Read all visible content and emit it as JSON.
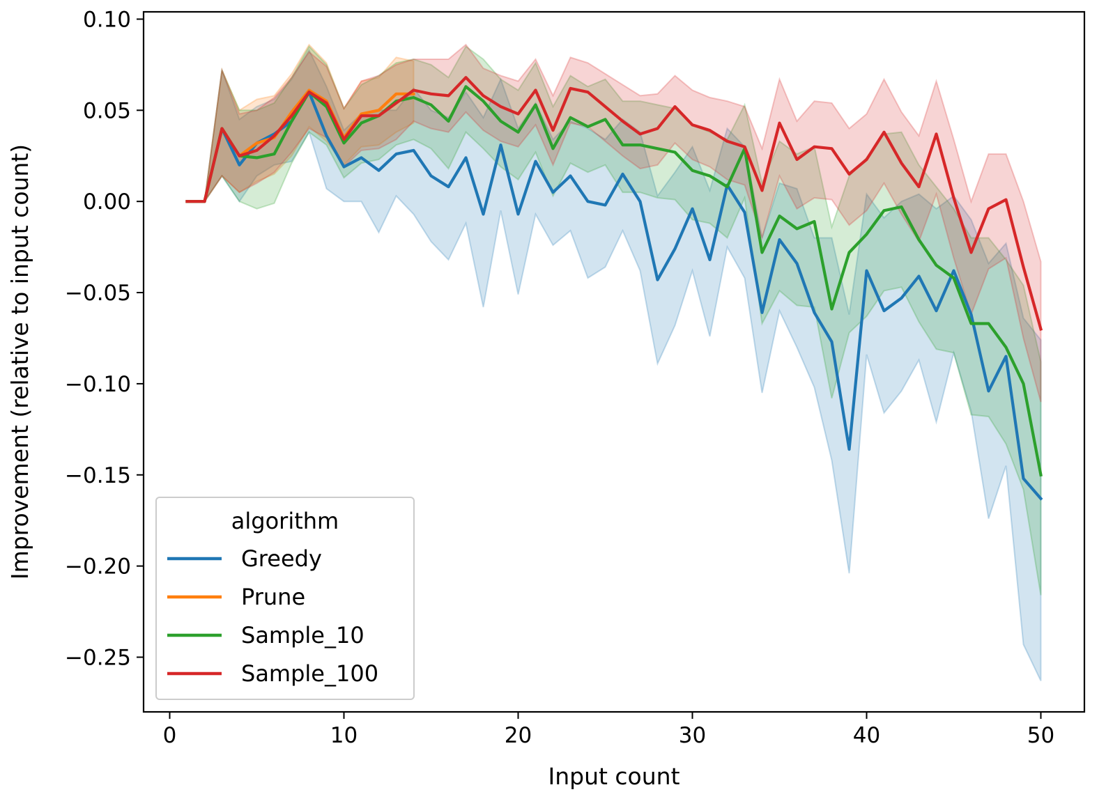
{
  "chart_data": {
    "type": "line",
    "title": "",
    "xlabel": "Input count",
    "ylabel": "Improvement (relative to input count)",
    "xlim": [
      -1.5,
      52.5
    ],
    "ylim": [
      -0.28,
      0.104
    ],
    "xticks": [
      0,
      10,
      20,
      30,
      40,
      50
    ],
    "xtick_labels": [
      "0",
      "10",
      "20",
      "30",
      "40",
      "50"
    ],
    "yticks": [
      0.1,
      0.05,
      0.0,
      -0.05,
      -0.1,
      -0.15,
      -0.2,
      -0.25
    ],
    "ytick_labels": [
      "0.10",
      "0.05",
      "0.00",
      "−0.05",
      "−0.10",
      "−0.15",
      "−0.20",
      "−0.25"
    ],
    "grid": false,
    "legend": {
      "title": "algorithm",
      "placement": "lower-left"
    },
    "series": [
      {
        "name": "Greedy",
        "color": "#1f77b4",
        "x": [
          1,
          2,
          3,
          4,
          5,
          6,
          7,
          8,
          9,
          10,
          11,
          12,
          13,
          14,
          15,
          16,
          17,
          18,
          19,
          20,
          21,
          22,
          23,
          24,
          25,
          26,
          27,
          28,
          29,
          30,
          31,
          32,
          33,
          34,
          35,
          36,
          37,
          38,
          39,
          40,
          41,
          42,
          43,
          44,
          45,
          46,
          47,
          48,
          49,
          50
        ],
        "y": [
          0,
          0,
          0.04,
          0.02,
          0.032,
          0.037,
          0.044,
          0.06,
          0.036,
          0.019,
          0.024,
          0.017,
          0.026,
          0.028,
          0.014,
          0.008,
          0.024,
          -0.007,
          0.031,
          -0.007,
          0.022,
          0.005,
          0.014,
          0.0,
          -0.002,
          0.015,
          0.0,
          -0.043,
          -0.026,
          -0.004,
          -0.032,
          0.009,
          -0.006,
          -0.061,
          -0.021,
          -0.034,
          -0.061,
          -0.077,
          -0.136,
          -0.038,
          -0.06,
          -0.053,
          -0.041,
          -0.06,
          -0.038,
          -0.062,
          -0.104,
          -0.085,
          -0.152,
          -0.163
        ],
        "ci_low": [
          0,
          0,
          0.014,
          0.0,
          0.014,
          0.02,
          0.022,
          0.038,
          0.007,
          0.0,
          0.0,
          -0.017,
          0.003,
          -0.007,
          -0.022,
          -0.032,
          -0.012,
          -0.058,
          -0.005,
          -0.051,
          -0.007,
          -0.024,
          -0.016,
          -0.042,
          -0.036,
          -0.016,
          -0.038,
          -0.089,
          -0.068,
          -0.038,
          -0.074,
          -0.025,
          -0.042,
          -0.105,
          -0.06,
          -0.08,
          -0.102,
          -0.142,
          -0.204,
          -0.084,
          -0.116,
          -0.104,
          -0.087,
          -0.121,
          -0.083,
          -0.115,
          -0.174,
          -0.145,
          -0.243,
          -0.263
        ],
        "ci_high": [
          0,
          0,
          0.072,
          0.045,
          0.052,
          0.056,
          0.067,
          0.083,
          0.063,
          0.039,
          0.048,
          0.05,
          0.05,
          0.062,
          0.05,
          0.046,
          0.06,
          0.046,
          0.067,
          0.04,
          0.054,
          0.034,
          0.044,
          0.04,
          0.034,
          0.045,
          0.038,
          0.003,
          0.016,
          0.03,
          0.006,
          0.04,
          0.03,
          -0.02,
          0.01,
          0.007,
          -0.02,
          -0.02,
          -0.062,
          0.004,
          -0.009,
          0.0,
          0.004,
          -0.004,
          0.003,
          -0.01,
          -0.034,
          -0.023,
          -0.064,
          -0.076
        ]
      },
      {
        "name": "Prune",
        "color": "#ff7f0e",
        "x": [
          1,
          2,
          3,
          4,
          5,
          6,
          7,
          8,
          9,
          10,
          11,
          12,
          13,
          14
        ],
        "y": [
          0,
          0,
          0.04,
          0.025,
          0.032,
          0.035,
          0.049,
          0.061,
          0.055,
          0.035,
          0.048,
          0.05,
          0.059,
          0.059
        ],
        "ci_low": [
          0,
          0,
          0.014,
          0.005,
          0.011,
          0.015,
          0.025,
          0.041,
          0.033,
          0.02,
          0.03,
          0.031,
          0.038,
          0.043
        ],
        "ci_high": [
          0,
          0,
          0.072,
          0.05,
          0.056,
          0.058,
          0.07,
          0.086,
          0.076,
          0.051,
          0.066,
          0.068,
          0.079,
          0.077
        ]
      },
      {
        "name": "Sample_10",
        "color": "#2ca02c",
        "x": [
          1,
          2,
          3,
          4,
          5,
          6,
          7,
          8,
          9,
          10,
          11,
          12,
          13,
          14,
          15,
          16,
          17,
          18,
          19,
          20,
          21,
          22,
          23,
          24,
          25,
          26,
          27,
          28,
          29,
          30,
          31,
          32,
          33,
          34,
          35,
          36,
          37,
          38,
          39,
          40,
          41,
          42,
          43,
          44,
          45,
          46,
          47,
          48,
          49,
          50
        ],
        "y": [
          0,
          0,
          0.04,
          0.025,
          0.024,
          0.026,
          0.044,
          0.06,
          0.052,
          0.032,
          0.043,
          0.047,
          0.055,
          0.057,
          0.053,
          0.044,
          0.063,
          0.055,
          0.044,
          0.038,
          0.053,
          0.029,
          0.046,
          0.041,
          0.045,
          0.031,
          0.031,
          0.029,
          0.027,
          0.017,
          0.014,
          0.008,
          0.029,
          -0.028,
          -0.008,
          -0.015,
          -0.011,
          -0.059,
          -0.028,
          -0.018,
          -0.005,
          -0.003,
          -0.021,
          -0.035,
          -0.042,
          -0.067,
          -0.067,
          -0.08,
          -0.1,
          -0.15
        ],
        "ci_low": [
          0,
          0,
          0.014,
          0.0,
          -0.004,
          -0.001,
          0.021,
          0.038,
          0.031,
          0.013,
          0.021,
          0.023,
          0.031,
          0.034,
          0.029,
          0.018,
          0.038,
          0.029,
          0.019,
          0.012,
          0.027,
          0.003,
          0.021,
          0.016,
          0.02,
          0.005,
          0.005,
          0.002,
          0.001,
          -0.01,
          -0.012,
          -0.02,
          0.002,
          -0.067,
          -0.049,
          -0.057,
          -0.058,
          -0.108,
          -0.072,
          -0.063,
          -0.049,
          -0.047,
          -0.066,
          -0.081,
          -0.083,
          -0.117,
          -0.118,
          -0.133,
          -0.158,
          -0.216
        ],
        "ci_high": [
          0,
          0,
          0.072,
          0.05,
          0.05,
          0.054,
          0.068,
          0.085,
          0.075,
          0.051,
          0.064,
          0.069,
          0.076,
          0.078,
          0.075,
          0.068,
          0.085,
          0.078,
          0.067,
          0.061,
          0.076,
          0.052,
          0.069,
          0.063,
          0.067,
          0.055,
          0.055,
          0.053,
          0.051,
          0.042,
          0.038,
          0.034,
          0.053,
          0.01,
          0.033,
          0.026,
          0.03,
          -0.014,
          0.014,
          0.024,
          0.037,
          0.038,
          0.02,
          0.008,
          -0.004,
          -0.02,
          -0.02,
          -0.032,
          -0.046,
          -0.088
        ]
      },
      {
        "name": "Sample_100",
        "color": "#d62728",
        "x": [
          1,
          2,
          3,
          4,
          5,
          6,
          7,
          8,
          9,
          10,
          11,
          12,
          13,
          14,
          15,
          16,
          17,
          18,
          19,
          20,
          21,
          22,
          23,
          24,
          25,
          26,
          27,
          28,
          29,
          30,
          31,
          32,
          33,
          34,
          35,
          36,
          37,
          38,
          39,
          40,
          41,
          42,
          43,
          44,
          45,
          46,
          47,
          48,
          49,
          50
        ],
        "y": [
          0,
          0,
          0.04,
          0.025,
          0.028,
          0.036,
          0.047,
          0.06,
          0.054,
          0.034,
          0.047,
          0.047,
          0.054,
          0.061,
          0.059,
          0.058,
          0.068,
          0.058,
          0.052,
          0.048,
          0.061,
          0.039,
          0.062,
          0.06,
          0.052,
          0.044,
          0.037,
          0.04,
          0.052,
          0.042,
          0.039,
          0.033,
          0.03,
          0.006,
          0.043,
          0.023,
          0.03,
          0.029,
          0.015,
          0.023,
          0.038,
          0.021,
          0.008,
          0.037,
          0.002,
          -0.028,
          -0.004,
          0.001,
          -0.036,
          -0.07
        ],
        "ci_low": [
          0,
          0,
          0.014,
          0.005,
          0.01,
          0.016,
          0.027,
          0.04,
          0.035,
          0.019,
          0.028,
          0.029,
          0.034,
          0.044,
          0.04,
          0.038,
          0.049,
          0.039,
          0.033,
          0.03,
          0.042,
          0.02,
          0.043,
          0.041,
          0.033,
          0.025,
          0.018,
          0.02,
          0.032,
          0.023,
          0.019,
          0.012,
          0.009,
          -0.02,
          0.014,
          -0.004,
          0.002,
          0.001,
          -0.013,
          -0.005,
          0.01,
          -0.007,
          -0.022,
          0.004,
          -0.031,
          -0.062,
          -0.037,
          -0.031,
          -0.075,
          -0.11
        ],
        "ci_high": [
          0,
          0,
          0.072,
          0.048,
          0.05,
          0.057,
          0.068,
          0.082,
          0.074,
          0.051,
          0.066,
          0.069,
          0.075,
          0.078,
          0.078,
          0.078,
          0.086,
          0.073,
          0.069,
          0.066,
          0.078,
          0.058,
          0.079,
          0.076,
          0.07,
          0.064,
          0.058,
          0.059,
          0.069,
          0.061,
          0.057,
          0.055,
          0.052,
          0.029,
          0.067,
          0.044,
          0.055,
          0.054,
          0.04,
          0.048,
          0.067,
          0.049,
          0.036,
          0.066,
          0.034,
          0.0,
          0.026,
          0.026,
          0.0,
          -0.033
        ]
      }
    ]
  }
}
